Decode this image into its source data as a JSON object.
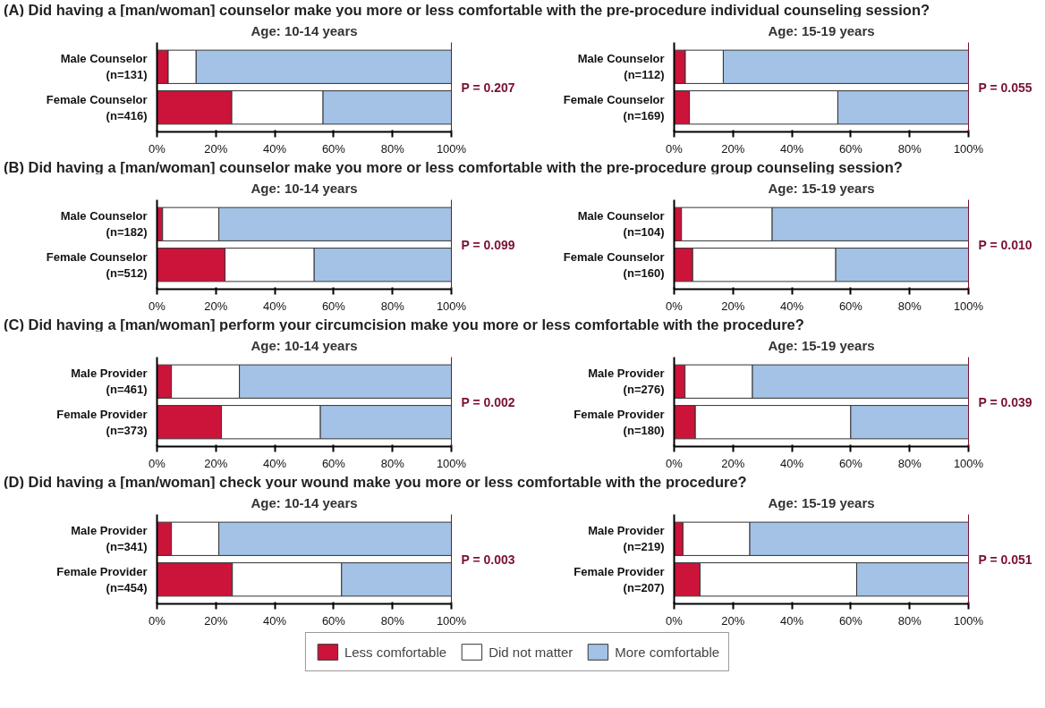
{
  "chart_data": [
    {
      "type": "bar",
      "orientation": "horizontal",
      "stacked": true,
      "title": "(A) Did having a [man/woman] counselor make you more or less comfortable with the pre-procedure individual counseling session?",
      "subtitle": "Age: 10-14 years",
      "categories": [
        "Male Counselor\n(n=131)",
        "Female Counselor\n(n=416)"
      ],
      "series": [
        {
          "color": "#cc1339",
          "values": [
            3.8,
            25.4
          ]
        },
        {
          "color": "#ffffff",
          "values": [
            9.5,
            31.0
          ]
        },
        {
          "color": "#a3c2e6",
          "values": [
            86.7,
            43.6
          ]
        }
      ],
      "xlim": [
        0,
        100
      ],
      "xticks": [
        {
          "value": 0,
          "label": "0%"
        },
        {
          "value": 20,
          "label": "20%"
        },
        {
          "value": 40,
          "label": "40%"
        },
        {
          "value": 60,
          "label": "60%"
        },
        {
          "value": 80,
          "label": "80%"
        },
        {
          "value": 100,
          "label": "100%"
        }
      ],
      "annotations": [
        "P = 0.207"
      ],
      "grid": false,
      "legend": false
    },
    {
      "type": "bar",
      "orientation": "horizontal",
      "stacked": true,
      "title": "Age: 15-19 years",
      "categories": [
        "Male Counselor\n(n=112)",
        "Female Counselor\n(n=169)"
      ],
      "series": [
        {
          "color": "#cc1339",
          "values": [
            3.8,
            5.2
          ]
        },
        {
          "color": "#ffffff",
          "values": [
            12.9,
            50.4
          ]
        },
        {
          "color": "#a3c2e6",
          "values": [
            83.3,
            44.4
          ]
        }
      ],
      "xlim": [
        0,
        100
      ],
      "xticks": [
        {
          "value": 0,
          "label": "0%"
        },
        {
          "value": 20,
          "label": "20%"
        },
        {
          "value": 40,
          "label": "40%"
        },
        {
          "value": 60,
          "label": "60%"
        },
        {
          "value": 80,
          "label": "80%"
        },
        {
          "value": 100,
          "label": "100%"
        }
      ],
      "annotations": [
        "P = 0.055"
      ],
      "grid": false,
      "legend": false
    },
    {
      "type": "bar",
      "orientation": "horizontal",
      "stacked": true,
      "title": "(B) Did having a [man/woman] counselor make you more or less comfortable with the pre-procedure group counseling session?",
      "subtitle": "Age: 10-14 years",
      "categories": [
        "Male Counselor\n(n=182)",
        "Female Counselor\n(n=512)"
      ],
      "series": [
        {
          "color": "#cc1339",
          "values": [
            1.9,
            23.1
          ]
        },
        {
          "color": "#ffffff",
          "values": [
            19.1,
            30.3
          ]
        },
        {
          "color": "#a3c2e6",
          "values": [
            79.0,
            46.6
          ]
        }
      ],
      "xlim": [
        0,
        100
      ],
      "xticks": [
        {
          "value": 0,
          "label": "0%"
        },
        {
          "value": 20,
          "label": "20%"
        },
        {
          "value": 40,
          "label": "40%"
        },
        {
          "value": 60,
          "label": "60%"
        },
        {
          "value": 80,
          "label": "80%"
        },
        {
          "value": 100,
          "label": "100%"
        }
      ],
      "annotations": [
        "P = 0.099"
      ],
      "grid": false,
      "legend": false
    },
    {
      "type": "bar",
      "orientation": "horizontal",
      "stacked": true,
      "title": "Age: 15-19 years",
      "categories": [
        "Male Counselor\n(n=104)",
        "Female Counselor\n(n=160)"
      ],
      "series": [
        {
          "color": "#cc1339",
          "values": [
            2.5,
            6.3
          ]
        },
        {
          "color": "#ffffff",
          "values": [
            30.8,
            48.6
          ]
        },
        {
          "color": "#a3c2e6",
          "values": [
            66.7,
            45.1
          ]
        }
      ],
      "xlim": [
        0,
        100
      ],
      "xticks": [
        {
          "value": 0,
          "label": "0%"
        },
        {
          "value": 20,
          "label": "20%"
        },
        {
          "value": 40,
          "label": "40%"
        },
        {
          "value": 60,
          "label": "60%"
        },
        {
          "value": 80,
          "label": "80%"
        },
        {
          "value": 100,
          "label": "100%"
        }
      ],
      "annotations": [
        "P = 0.010"
      ],
      "grid": false,
      "legend": false
    },
    {
      "type": "bar",
      "orientation": "horizontal",
      "stacked": true,
      "title": "(C) Did having a [man/woman] perform your circumcision make you more or less comfortable with the procedure?",
      "subtitle": "Age: 10-14 years",
      "categories": [
        "Male Provider\n(n=461)",
        "Female Provider\n(n=373)"
      ],
      "series": [
        {
          "color": "#cc1339",
          "values": [
            4.9,
            21.9
          ]
        },
        {
          "color": "#ffffff",
          "values": [
            23.1,
            33.6
          ]
        },
        {
          "color": "#a3c2e6",
          "values": [
            72.0,
            44.5
          ]
        }
      ],
      "xlim": [
        0,
        100
      ],
      "xticks": [
        {
          "value": 0,
          "label": "0%"
        },
        {
          "value": 20,
          "label": "20%"
        },
        {
          "value": 40,
          "label": "40%"
        },
        {
          "value": 60,
          "label": "60%"
        },
        {
          "value": 80,
          "label": "80%"
        },
        {
          "value": 100,
          "label": "100%"
        }
      ],
      "annotations": [
        "P = 0.002"
      ],
      "grid": false,
      "legend": false
    },
    {
      "type": "bar",
      "orientation": "horizontal",
      "stacked": true,
      "title": "Age: 15-19 years",
      "categories": [
        "Male Provider\n(n=276)",
        "Female Provider\n(n=180)"
      ],
      "series": [
        {
          "color": "#cc1339",
          "values": [
            3.7,
            7.2
          ]
        },
        {
          "color": "#ffffff",
          "values": [
            22.9,
            52.8
          ]
        },
        {
          "color": "#a3c2e6",
          "values": [
            73.4,
            40.0
          ]
        }
      ],
      "xlim": [
        0,
        100
      ],
      "xticks": [
        {
          "value": 0,
          "label": "0%"
        },
        {
          "value": 20,
          "label": "20%"
        },
        {
          "value": 40,
          "label": "40%"
        },
        {
          "value": 60,
          "label": "60%"
        },
        {
          "value": 80,
          "label": "80%"
        },
        {
          "value": 100,
          "label": "100%"
        }
      ],
      "annotations": [
        "P = 0.039"
      ],
      "grid": false,
      "legend": false
    },
    {
      "type": "bar",
      "orientation": "horizontal",
      "stacked": true,
      "title": "(D) Did having a [man/woman] check your wound make you more or less comfortable with the procedure?",
      "subtitle": "Age: 10-14 years",
      "categories": [
        "Male Provider\n(n=341)",
        "Female Provider\n(n=454)"
      ],
      "series": [
        {
          "color": "#cc1339",
          "values": [
            4.9,
            25.6
          ]
        },
        {
          "color": "#ffffff",
          "values": [
            16.1,
            37.1
          ]
        },
        {
          "color": "#a3c2e6",
          "values": [
            79.0,
            37.3
          ]
        }
      ],
      "xlim": [
        0,
        100
      ],
      "xticks": [
        {
          "value": 0,
          "label": "0%"
        },
        {
          "value": 20,
          "label": "20%"
        },
        {
          "value": 40,
          "label": "40%"
        },
        {
          "value": 60,
          "label": "60%"
        },
        {
          "value": 80,
          "label": "80%"
        },
        {
          "value": 100,
          "label": "100%"
        }
      ],
      "annotations": [
        "P = 0.003"
      ],
      "grid": false,
      "legend": false
    },
    {
      "type": "bar",
      "orientation": "horizontal",
      "stacked": true,
      "title": "Age: 15-19 years",
      "categories": [
        "Male Provider\n(n=219)",
        "Female Provider\n(n=207)"
      ],
      "series": [
        {
          "name": "Less comfortable",
          "color": "#cc1339",
          "values": [
            3.0,
            8.8
          ]
        },
        {
          "name": "Did not matter",
          "color": "#ffffff",
          "values": [
            22.7,
            53.2
          ]
        },
        {
          "name": "More comfortable",
          "color": "#a3c2e6",
          "values": [
            74.3,
            38.0
          ]
        }
      ],
      "xlim": [
        0,
        100
      ],
      "xticks": [
        {
          "value": 0,
          "label": "0%"
        },
        {
          "value": 20,
          "label": "20%"
        },
        {
          "value": 40,
          "label": "40%"
        },
        {
          "value": 60,
          "label": "60%"
        },
        {
          "value": 80,
          "label": "80%"
        },
        {
          "value": 100,
          "label": "100%"
        }
      ],
      "annotations": [
        "P = 0.051"
      ],
      "grid": false,
      "legend": "bottom"
    }
  ]
}
